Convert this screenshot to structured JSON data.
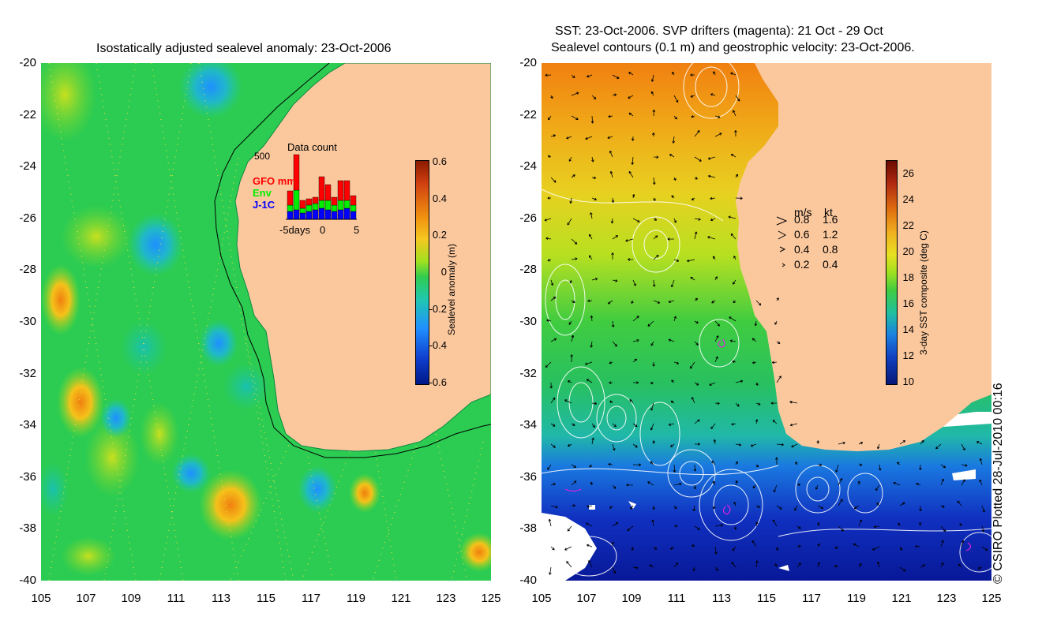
{
  "left_panel": {
    "title": "Isostatically adjusted sealevel anomaly: 23-Oct-2006",
    "x_ticks": [
      "105",
      "107",
      "109",
      "111",
      "113",
      "115",
      "117",
      "119",
      "121",
      "123",
      "125"
    ],
    "y_ticks": [
      "-20",
      "-22",
      "-24",
      "-26",
      "-28",
      "-30",
      "-32",
      "-34",
      "-36",
      "-38",
      "-40"
    ],
    "colorbar": {
      "label": "Sealevel anomaly (m)",
      "ticks": [
        "0.6",
        "0.4",
        "0.2",
        "0",
        "-0.2",
        "-0.4",
        "-0.6"
      ],
      "range": [
        -0.6,
        0.6
      ]
    },
    "inset": {
      "title": "Data count",
      "y_max_label": "500",
      "x_labels": [
        "-5days",
        "0",
        "5"
      ],
      "legend": [
        {
          "name": "GFO mm",
          "color": "#ff0000"
        },
        {
          "name": "Env",
          "color": "#00ee00"
        },
        {
          "name": "J-1C",
          "color": "#0000ff"
        }
      ]
    }
  },
  "right_panel": {
    "title_line1": "SST: 23-Oct-2006. SVP drifters (magenta): 21 Oct - 29 Oct",
    "title_line2": "Sealevel contours (0.1 m) and geostrophic velocity: 23-Oct-2006.",
    "x_ticks": [
      "105",
      "107",
      "109",
      "111",
      "113",
      "115",
      "117",
      "119",
      "121",
      "123",
      "125"
    ],
    "y_ticks": [
      "-20",
      "-22",
      "-24",
      "-26",
      "-28",
      "-30",
      "-32",
      "-34",
      "-36",
      "-38",
      "-40"
    ],
    "colorbar": {
      "label": "3-day SST composite (deg C)",
      "ticks": [
        "26",
        "24",
        "22",
        "20",
        "18",
        "16",
        "14",
        "12",
        "10"
      ],
      "range": [
        10,
        27
      ]
    },
    "velocity_legend": {
      "header_ms": "m/s",
      "header_kt": "kt",
      "rows": [
        {
          "ms": "0.8",
          "kt": "1.6"
        },
        {
          "ms": "0.6",
          "kt": "1.2"
        },
        {
          "ms": "0.4",
          "kt": "0.8"
        },
        {
          "ms": "0.2",
          "kt": "0.4"
        }
      ]
    }
  },
  "copyright": "© CSIRO Plotted 28-Jul-2010 00:16",
  "colors": {
    "land": "#fbc89e",
    "ocean_green": "#2fd14a",
    "sst_warm": "#e8c020",
    "sst_cold": "#1040c0"
  }
}
